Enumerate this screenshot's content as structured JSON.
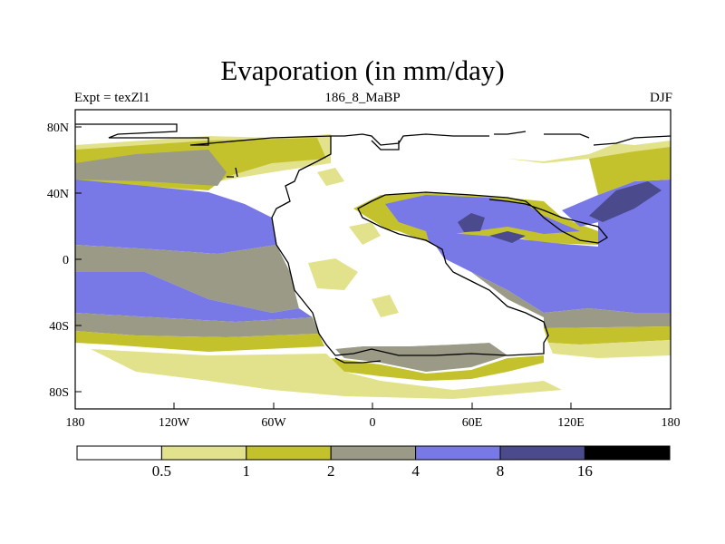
{
  "title": "Evaporation (in mm/day)",
  "subtitle_left": "Expt = texZl1",
  "subtitle_center": "186_8_MaBP",
  "subtitle_right": "DJF",
  "map": {
    "lon_ticks": [
      "180",
      "120W",
      "60W",
      "0",
      "60E",
      "120E",
      "180"
    ],
    "lat_ticks": [
      "80N",
      "40N",
      "0",
      "40S",
      "80S"
    ]
  },
  "colorbar": {
    "levels": [
      "0.5",
      "1",
      "2",
      "4",
      "8",
      "16"
    ],
    "colors": [
      "#ffffff",
      "#e2e28c",
      "#c4c22c",
      "#9a9a86",
      "#7878e6",
      "#4a4a8c",
      "#000000"
    ]
  }
}
